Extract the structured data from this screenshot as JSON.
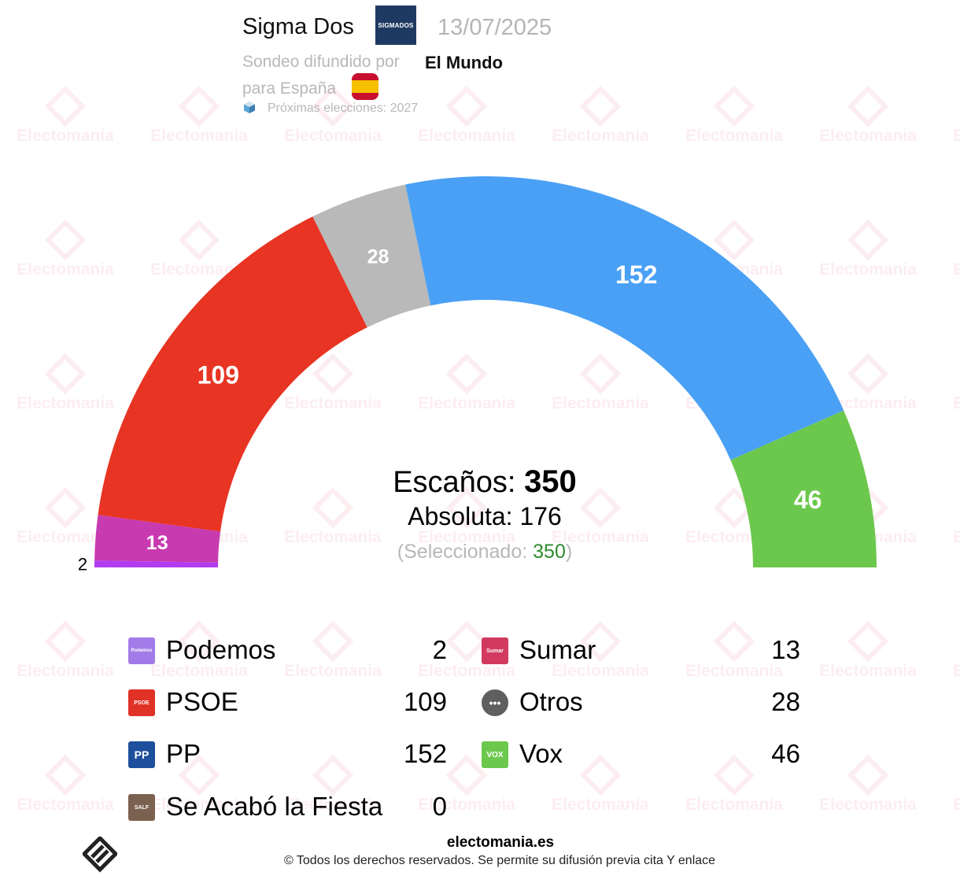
{
  "header": {
    "pollster": "Sigma Dos",
    "pollster_logo_text": "SIGMADOS",
    "date": "13/07/2025",
    "media_prefix": "Sondeo difundido por",
    "media": "El Mundo",
    "region": "para España",
    "next_elections": "Próximas elecciones: 2027"
  },
  "watermark_text": "Electomania",
  "summary": {
    "seats_label": "Escaños:",
    "seats_total": "350",
    "majority_text": "Absoluta: 176",
    "selected_prefix": "(Seleccionado:",
    "selected_value": "350",
    "selected_suffix": ")"
  },
  "chart_data": {
    "type": "pie",
    "total_seats": 350,
    "majority": 176,
    "segments": [
      {
        "party": "Podemos",
        "seats": 2,
        "color": "#b23cf0",
        "label_outside": true
      },
      {
        "party": "Sumar",
        "seats": 13,
        "color": "#c83ab0"
      },
      {
        "party": "PSOE",
        "seats": 109,
        "color": "#e83423"
      },
      {
        "party": "Otros",
        "seats": 28,
        "color": "#b9b9b9"
      },
      {
        "party": "PP",
        "seats": 152,
        "color": "#4aa0f5"
      },
      {
        "party": "Vox",
        "seats": 46,
        "color": "#6cc84c"
      }
    ]
  },
  "legend": [
    {
      "name": "Podemos",
      "value": "2",
      "color": "#a37be8",
      "icon": "Podemos"
    },
    {
      "name": "Sumar",
      "value": "13",
      "color": "#d13a5e",
      "icon": "Sumar"
    },
    {
      "name": "PSOE",
      "value": "109",
      "color": "#e03227",
      "icon": "PSOE"
    },
    {
      "name": "Otros",
      "value": "28",
      "color": "#5f5f5f",
      "icon": "•••"
    },
    {
      "name": "PP",
      "value": "152",
      "color": "#1d4f9c",
      "icon": "PP"
    },
    {
      "name": "Vox",
      "value": "46",
      "color": "#6cc84c",
      "icon": "VOX"
    },
    {
      "name": "Se Acabó la Fiesta",
      "value": "0",
      "color": "#7a6150",
      "icon": "SALF"
    }
  ],
  "footer": {
    "site": "electomania.es",
    "rights": "© Todos los derechos reservados. Se permite su difusión previa cita Y enlace"
  }
}
